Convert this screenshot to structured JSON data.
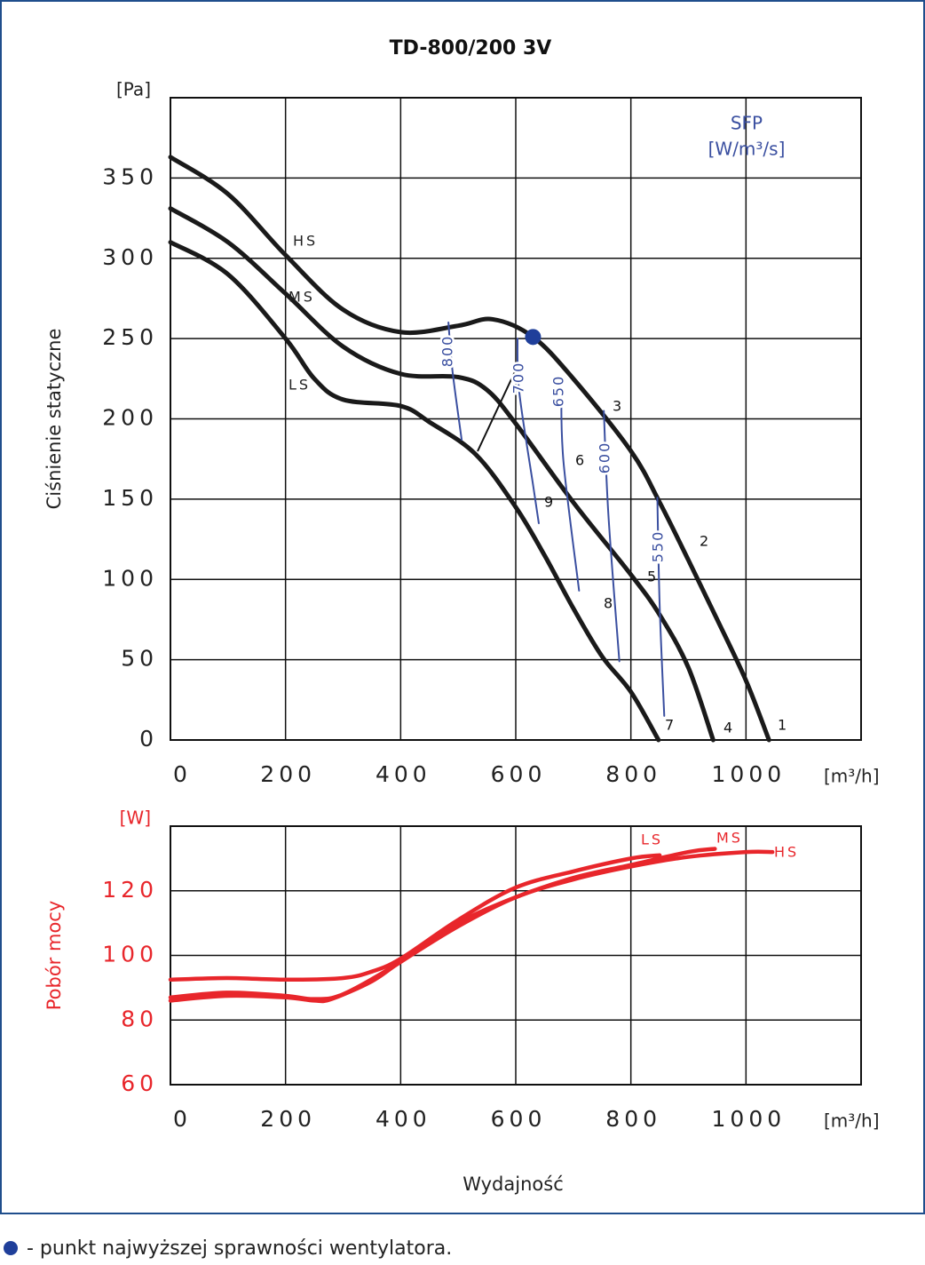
{
  "chart_data": [
    {
      "type": "line",
      "title": "TD-800/200 3V",
      "y_unit": "[Pa]",
      "x_unit": "[m³/h]",
      "ylabel": "Ciśnienie statyczne",
      "xlim": [
        0,
        1200
      ],
      "ylim": [
        0,
        400
      ],
      "xticks": [
        0,
        200,
        400,
        600,
        800,
        1000
      ],
      "yticks": [
        0,
        50,
        100,
        150,
        200,
        250,
        300,
        350
      ],
      "grid": true,
      "series": [
        {
          "name": "HS",
          "color": "#1a1a1a",
          "x": [
            0,
            100,
            200,
            300,
            400,
            500,
            560,
            630,
            700,
            800,
            850,
            900,
            950,
            1000,
            1040
          ],
          "values": [
            363,
            340,
            302,
            268,
            254,
            258,
            262,
            251,
            225,
            180,
            148,
            112,
            75,
            37,
            0
          ]
        },
        {
          "name": "MS",
          "color": "#1a1a1a",
          "x": [
            0,
            100,
            200,
            300,
            400,
            500,
            550,
            600,
            700,
            800,
            850,
            900,
            943
          ],
          "values": [
            331,
            310,
            278,
            245,
            228,
            226,
            218,
            197,
            148,
            103,
            78,
            45,
            0
          ]
        },
        {
          "name": "LS",
          "color": "#1a1a1a",
          "x": [
            0,
            100,
            200,
            250,
            300,
            400,
            450,
            530,
            600,
            650,
            700,
            750,
            800,
            848
          ],
          "values": [
            310,
            290,
            250,
            225,
            212,
            208,
            198,
            178,
            145,
            115,
            82,
            52,
            30,
            0
          ]
        }
      ],
      "sfp_title": "SFP",
      "sfp_unit": "[W/m³/s]",
      "sfp_series": [
        {
          "name": "800",
          "color": "#3a4fa0",
          "x": [
            483,
            490,
            506
          ],
          "values": [
            260,
            230,
            187
          ]
        },
        {
          "name": "700",
          "color": "#3a4fa0",
          "x": [
            603,
            606,
            630,
            640
          ],
          "values": [
            250,
            217,
            159,
            135
          ]
        },
        {
          "name": "650",
          "color": "#3a4fa0",
          "x": [
            679,
            683,
            710
          ],
          "values": [
            217,
            173,
            93
          ]
        },
        {
          "name": "600",
          "color": "#3a4fa0",
          "x": [
            753,
            761,
            780
          ],
          "values": [
            205,
            140,
            49
          ]
        },
        {
          "name": "550",
          "color": "#3a4fa0",
          "x": [
            846,
            850,
            858
          ],
          "values": [
            151,
            84,
            15
          ]
        }
      ],
      "best_point": {
        "x": 630,
        "y": 251,
        "color": "#1f3f9a"
      },
      "annotations": [
        "1",
        "2",
        "3",
        "4",
        "5",
        "6",
        "7",
        "8",
        "9"
      ]
    },
    {
      "type": "line",
      "y_unit": "[W]",
      "x_unit": "[m³/h]",
      "ylabel": "Pobór mocy",
      "xlabel": "Wydajność",
      "xlim": [
        0,
        1200
      ],
      "ylim": [
        60,
        140
      ],
      "xticks": [
        0,
        200,
        400,
        600,
        800,
        1000
      ],
      "yticks": [
        60,
        80,
        100,
        120
      ],
      "grid": true,
      "series": [
        {
          "name": "HS",
          "color": "#e8262b",
          "x": [
            0,
            100,
            200,
            250,
            280,
            350,
            400,
            500,
            600,
            700,
            800,
            900,
            1000,
            1046
          ],
          "values": [
            86,
            87.5,
            87,
            86,
            86.5,
            92,
            98,
            109,
            118,
            123.5,
            127.5,
            130.5,
            132,
            132
          ]
        },
        {
          "name": "MS",
          "color": "#e8262b",
          "x": [
            0,
            100,
            200,
            250,
            300,
            400,
            500,
            600,
            700,
            800,
            900,
            946
          ],
          "values": [
            87,
            88.5,
            87.5,
            86.5,
            88,
            98,
            110,
            118,
            124,
            128,
            132,
            133
          ]
        },
        {
          "name": "LS",
          "color": "#e8262b",
          "x": [
            0,
            100,
            200,
            300,
            350,
            400,
            500,
            600,
            700,
            800,
            850
          ],
          "values": [
            92.5,
            93,
            92.5,
            93,
            95,
            99,
            111,
            121,
            126,
            130,
            131
          ]
        }
      ]
    }
  ],
  "footer": {
    "text": "- punkt najwyższej sprawności wentylatora."
  }
}
